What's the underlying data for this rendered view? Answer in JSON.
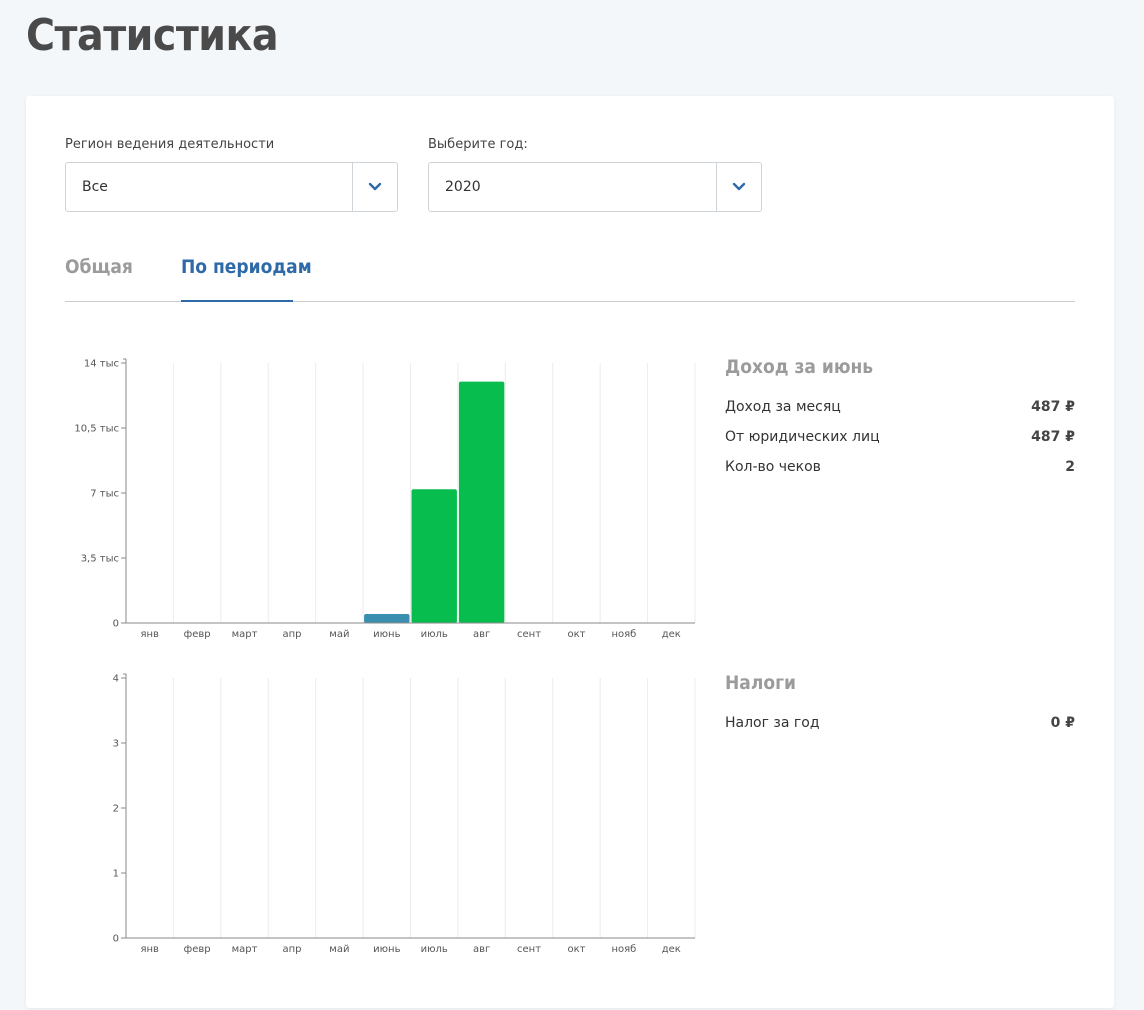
{
  "page": {
    "title": "Статистика"
  },
  "filters": {
    "region": {
      "label": "Регион ведения деятельности",
      "value": "Все"
    },
    "year": {
      "label": "Выберите год:",
      "value": "2020"
    }
  },
  "tabs": [
    {
      "label": "Общая",
      "active": false
    },
    {
      "label": "По периодам",
      "active": true
    }
  ],
  "income_panel": {
    "title": "Доход за июнь",
    "rows": [
      {
        "label": "Доход за месяц",
        "value": "487 ₽"
      },
      {
        "label": "От юридических лиц",
        "value": "487 ₽"
      },
      {
        "label": "Кол-во чеков",
        "value": "2"
      }
    ]
  },
  "tax_panel": {
    "title": "Налоги",
    "rows": [
      {
        "label": "Налог за год",
        "value": "0 ₽"
      }
    ]
  },
  "colors": {
    "accent": "#2f6aa8",
    "bar_green": "#06bd4e",
    "bar_selected": "#3a8eb0"
  },
  "chart_data": [
    {
      "type": "bar",
      "categories": [
        "янв",
        "февр",
        "март",
        "апр",
        "май",
        "июнь",
        "июль",
        "авг",
        "сент",
        "окт",
        "нояб",
        "дек"
      ],
      "values": [
        0,
        0,
        0,
        0,
        0,
        487,
        7200,
        13000,
        0,
        0,
        0,
        0
      ],
      "selected_index": 5,
      "ylim": [
        0,
        14000
      ],
      "yticks": [
        0,
        3500,
        7000,
        10500,
        14000
      ],
      "ytick_labels": [
        "0",
        "3,5 тыс",
        "7 тыс",
        "10,5 тыс",
        "14 тыс"
      ]
    },
    {
      "type": "bar",
      "categories": [
        "янв",
        "февр",
        "март",
        "апр",
        "май",
        "июнь",
        "июль",
        "авг",
        "сент",
        "окт",
        "нояб",
        "дек"
      ],
      "values": [
        0,
        0,
        0,
        0,
        0,
        0,
        0,
        0,
        0,
        0,
        0,
        0
      ],
      "ylim": [
        0,
        4
      ],
      "yticks": [
        0,
        1,
        2,
        3,
        4
      ],
      "ytick_labels": [
        "0",
        "1",
        "2",
        "3",
        "4"
      ]
    }
  ]
}
